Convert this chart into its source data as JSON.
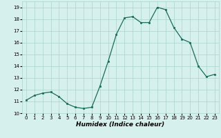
{
  "x": [
    0,
    1,
    2,
    3,
    4,
    5,
    6,
    7,
    8,
    9,
    10,
    11,
    12,
    13,
    14,
    15,
    16,
    17,
    18,
    19,
    20,
    21,
    22,
    23
  ],
  "y": [
    11.1,
    11.5,
    11.7,
    11.8,
    11.4,
    10.8,
    10.5,
    10.4,
    10.5,
    12.3,
    14.4,
    16.7,
    18.1,
    18.2,
    17.7,
    17.7,
    19.0,
    18.8,
    17.3,
    16.3,
    16.0,
    14.0,
    13.1,
    13.3
  ],
  "xlabel": "Humidex (Indice chaleur)",
  "ylabel": "",
  "xlim": [
    -0.5,
    23.5
  ],
  "ylim": [
    10,
    19.5
  ],
  "yticks": [
    10,
    11,
    12,
    13,
    14,
    15,
    16,
    17,
    18,
    19
  ],
  "xticks": [
    0,
    1,
    2,
    3,
    4,
    5,
    6,
    7,
    8,
    9,
    10,
    11,
    12,
    13,
    14,
    15,
    16,
    17,
    18,
    19,
    20,
    21,
    22,
    23
  ],
  "line_color": "#1a6b5a",
  "marker": "s",
  "marker_size": 2.0,
  "bg_color": "#d6f0ee",
  "grid_color": "#aad4cc",
  "axis_fontsize": 6.0,
  "tick_fontsize": 5.0,
  "xlabel_fontsize": 6.5
}
